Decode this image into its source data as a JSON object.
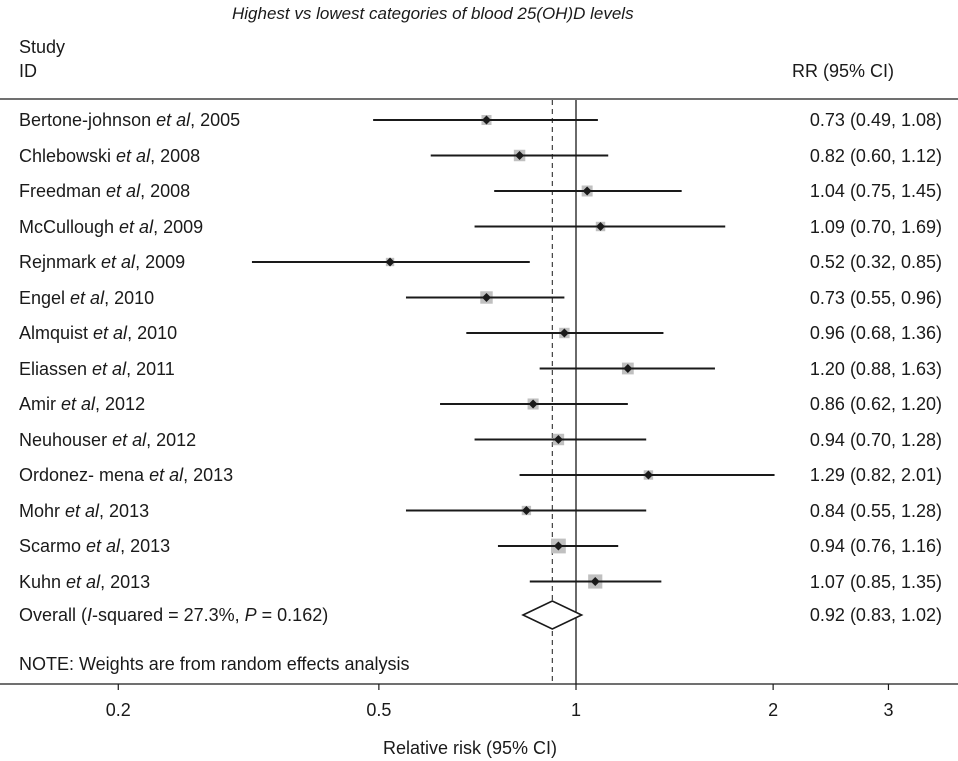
{
  "chart_data": {
    "type": "forest",
    "title": "Highest vs lowest categories of blood 25(OH)D levels",
    "col_study_header": [
      "Study",
      "ID"
    ],
    "col_estimate_header": "RR (95% CI)",
    "xlabel": "Relative risk (95% CI)",
    "x_scale": "log",
    "xticks": [
      0.2,
      0.5,
      1,
      2,
      3
    ],
    "xtick_labels": [
      "0.2",
      "0.5",
      "1",
      "2",
      "3"
    ],
    "studies": [
      {
        "author": "Bertone-johnson",
        "etal": "et al",
        "year": ", 2005",
        "rr": 0.73,
        "lo": 0.49,
        "hi": 1.08,
        "label": "0.73 (0.49, 1.08)",
        "weight": 5.2
      },
      {
        "author": "Chlebowski",
        "etal": "et al",
        "year": ", 2008",
        "rr": 0.82,
        "lo": 0.6,
        "hi": 1.12,
        "label": "0.82 (0.60, 1.12)",
        "weight": 6.8
      },
      {
        "author": "Freedman",
        "etal": "et al",
        "year": ", 2008",
        "rr": 1.04,
        "lo": 0.75,
        "hi": 1.45,
        "label": "1.04 (0.75, 1.45)",
        "weight": 6.2
      },
      {
        "author": "McCullough",
        "etal": "et al",
        "year": ", 2009",
        "rr": 1.09,
        "lo": 0.7,
        "hi": 1.69,
        "label": "1.09 (0.70, 1.69)",
        "weight": 4.6
      },
      {
        "author": "Rejnmark",
        "etal": "et al",
        "year": ", 2009",
        "rr": 0.52,
        "lo": 0.32,
        "hi": 0.85,
        "label": "0.52 (0.32, 0.85)",
        "weight": 3.6
      },
      {
        "author": "Engel",
        "etal": "et al",
        "year": ", 2010",
        "rr": 0.73,
        "lo": 0.55,
        "hi": 0.96,
        "label": "0.73 (0.55, 0.96)",
        "weight": 8.0
      },
      {
        "author": "Almquist",
        "etal": "et al",
        "year": ", 2010",
        "rr": 0.96,
        "lo": 0.68,
        "hi": 1.36,
        "label": "0.96 (0.68, 1.36)",
        "weight": 5.6
      },
      {
        "author": "Eliassen",
        "etal": "et al",
        "year": ", 2011",
        "rr": 1.2,
        "lo": 0.88,
        "hi": 1.63,
        "label": "1.20 (0.88, 1.63)",
        "weight": 7.2
      },
      {
        "author": "Amir",
        "etal": "et al",
        "year": ", 2012",
        "rr": 0.86,
        "lo": 0.62,
        "hi": 1.2,
        "label": "0.86 (0.62, 1.20)",
        "weight": 6.3
      },
      {
        "author": "Neuhouser",
        "etal": "et al",
        "year": ", 2012",
        "rr": 0.94,
        "lo": 0.7,
        "hi": 1.28,
        "label": "0.94 (0.70, 1.28)",
        "weight": 6.8
      },
      {
        "author": "Ordonez- mena",
        "etal": "et al",
        "year": ", 2013",
        "rr": 1.29,
        "lo": 0.82,
        "hi": 2.01,
        "label": "1.29 (0.82, 2.01)",
        "weight": 4.6
      },
      {
        "author": "Mohr",
        "etal": "et al",
        "year": ", 2013",
        "rr": 0.84,
        "lo": 0.55,
        "hi": 1.28,
        "label": "0.84 (0.55, 1.28)",
        "weight": 4.5
      },
      {
        "author": "Scarmo",
        "etal": "et al",
        "year": ", 2013",
        "rr": 0.94,
        "lo": 0.76,
        "hi": 1.16,
        "label": "0.94 (0.76, 1.16)",
        "weight": 11.3
      },
      {
        "author": "Kuhn",
        "etal": "et al",
        "year": ", 2013",
        "rr": 1.07,
        "lo": 0.85,
        "hi": 1.35,
        "label": "1.07 (0.85, 1.35)",
        "weight": 10.4
      }
    ],
    "overall": {
      "label_pre": "Overall (",
      "label_i": "I",
      "label_mid": "-squared = 27.3%, ",
      "label_p": "P",
      "label_post": " = 0.162)",
      "rr": 0.92,
      "lo": 0.83,
      "hi": 1.02,
      "label": "0.92 (0.83, 1.02)"
    },
    "note": "NOTE: Weights are from random effects analysis",
    "colors": {
      "marker": "#1a1a1a",
      "weight_box": "#c0c0c0",
      "line": "#1a1a1a"
    }
  }
}
